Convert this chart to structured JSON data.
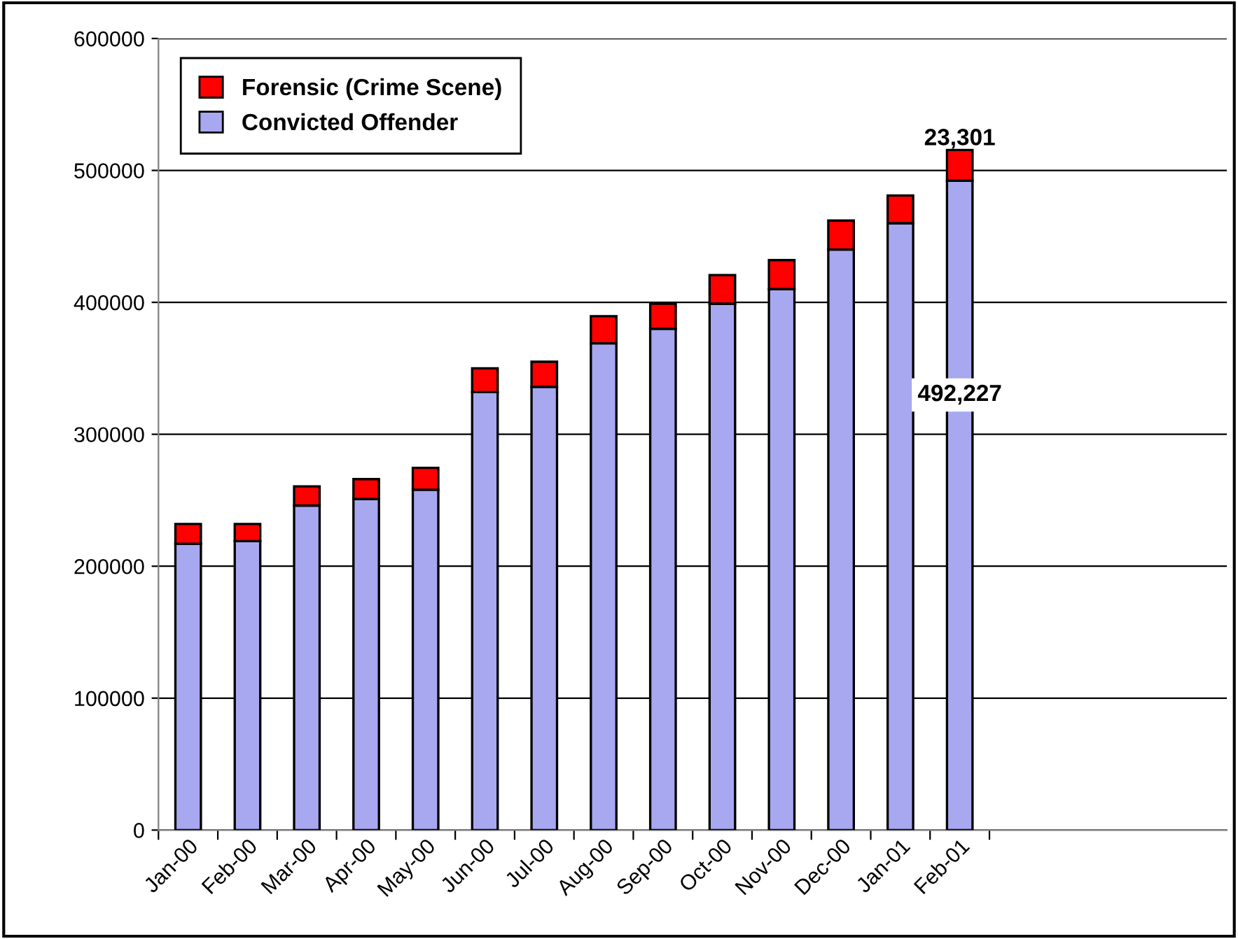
{
  "chart_data": {
    "type": "bar",
    "stacked": true,
    "categories": [
      "Jan-00",
      "Feb-00",
      "Mar-00",
      "Apr-00",
      "May-00",
      "Jun-00",
      "Jul-00",
      "Aug-00",
      "Sep-00",
      "Oct-00",
      "Nov-00",
      "Dec-00",
      "Jan-01",
      "Feb-01",
      null,
      null,
      null,
      null
    ],
    "series": [
      {
        "name": "Convicted Offender",
        "color": "#a8a8f0",
        "values": [
          217000,
          219000,
          246000,
          251000,
          258000,
          332000,
          336000,
          369000,
          380000,
          399000,
          410000,
          440000,
          460000,
          492227,
          null,
          null,
          null,
          null
        ],
        "value_labels": [
          null,
          null,
          null,
          null,
          null,
          null,
          null,
          null,
          null,
          null,
          null,
          null,
          null,
          "492,227",
          null,
          null,
          null,
          null
        ]
      },
      {
        "name": "Forensic (Crime Scene)",
        "color": "#ff0000",
        "values": [
          15000,
          13000,
          14500,
          15000,
          16600,
          18000,
          19000,
          20500,
          19000,
          21700,
          22000,
          22000,
          21000,
          23301,
          null,
          null,
          null,
          null
        ],
        "value_labels": [
          null,
          null,
          null,
          null,
          null,
          null,
          null,
          null,
          null,
          null,
          null,
          null,
          null,
          "23,301",
          null,
          null,
          null,
          null
        ]
      }
    ],
    "ylim": [
      0,
      600000
    ],
    "yticks": [
      0,
      100000,
      200000,
      300000,
      400000,
      500000,
      600000
    ],
    "grid": "y",
    "legend": "top left"
  }
}
